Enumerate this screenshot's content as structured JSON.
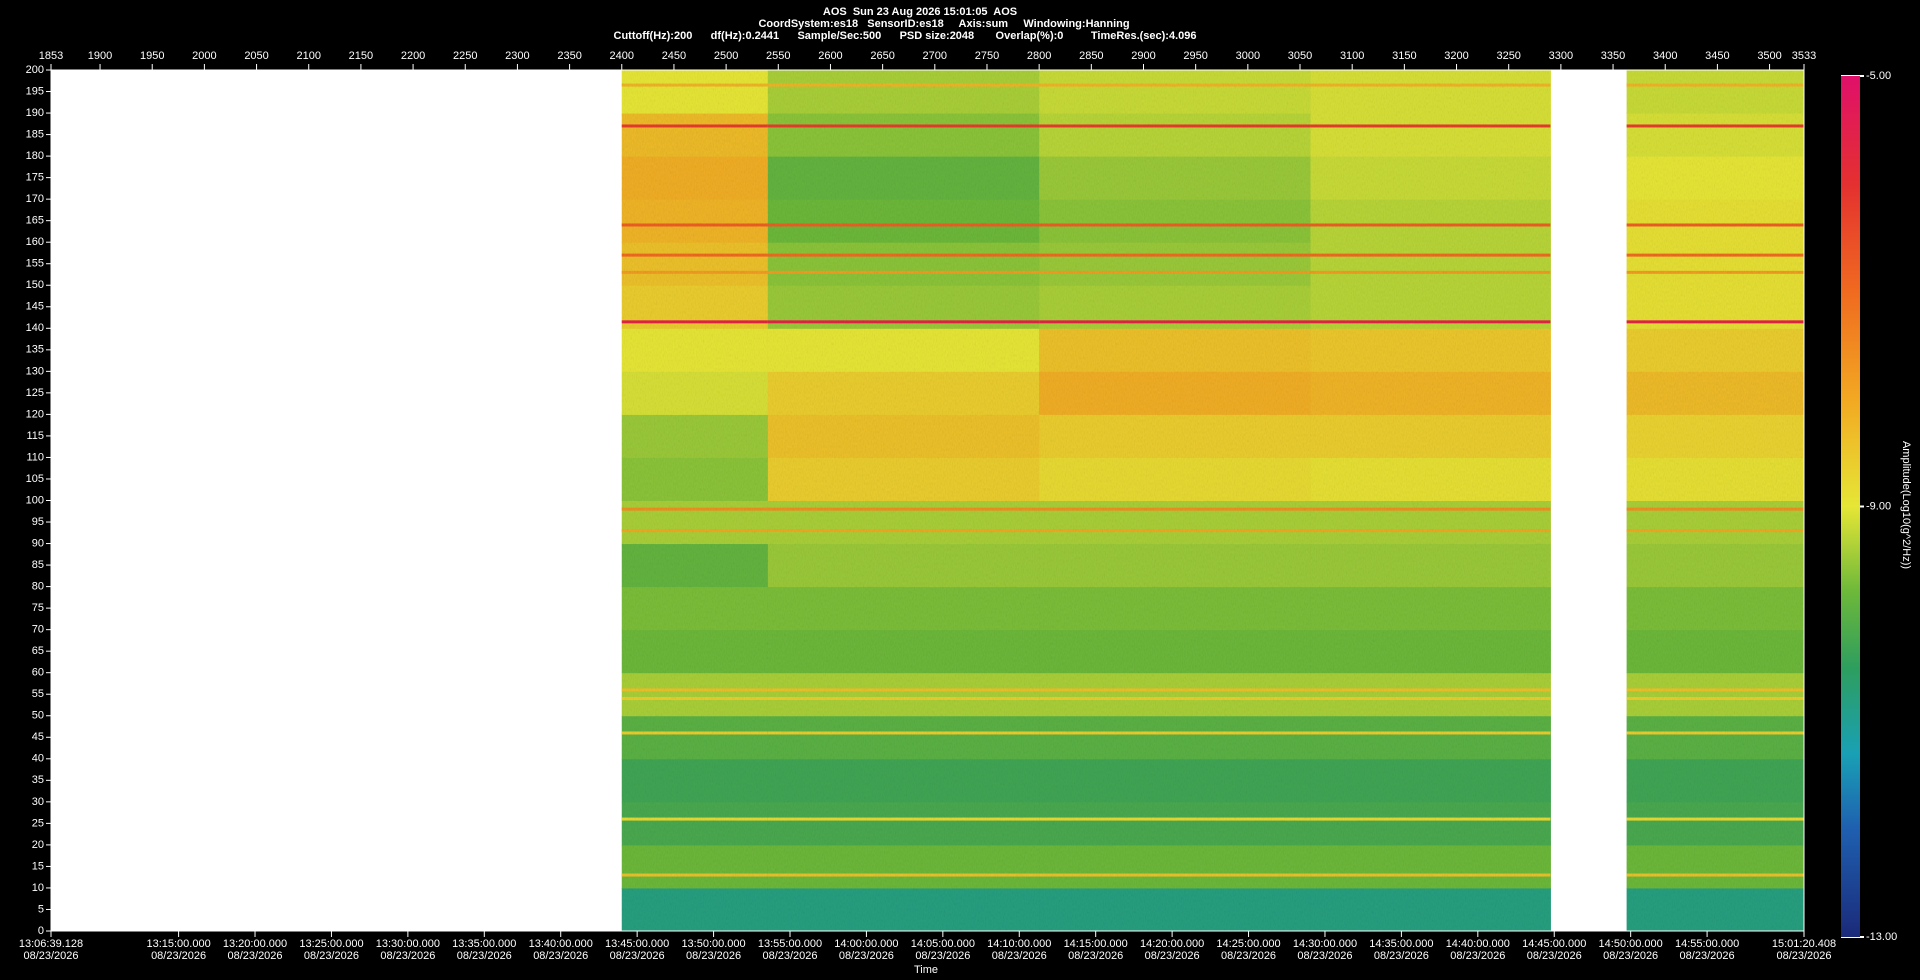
{
  "chart_data": {
    "type": "spectrogram",
    "title": "AOS  Sun 23 Aug 2026 15:01:05  AOS",
    "info_lines": [
      "CoordSystem:es18   SensorID:es18     Axis:sum     Windowing:Hanning",
      "Cuttoff(Hz):200      df(Hz):0.2441      Sample/Sec:500      PSD size:2048       Overlap(%):0         TimeRes.(sec):4.096"
    ],
    "xlabel": "Time",
    "colorbar_label": "Amplitude(Log10(g^2/Hz))",
    "xlim": [
      1853,
      3533
    ],
    "xticks": [
      1853,
      1900,
      1950,
      2000,
      2050,
      2100,
      2150,
      2200,
      2250,
      2300,
      2350,
      2400,
      2450,
      2500,
      2550,
      2600,
      2650,
      2700,
      2750,
      2800,
      2850,
      2900,
      2950,
      3000,
      3050,
      3100,
      3150,
      3200,
      3250,
      3300,
      3350,
      3400,
      3450,
      3500,
      3533
    ],
    "x2ticks": [
      {
        "value": 1853,
        "label": "13:06:39.128",
        "date": "08/23/2026"
      },
      {
        "value": 1975.283,
        "label": "13:15:00.000",
        "date": "08/23/2026"
      },
      {
        "value": 2048.525,
        "label": "13:20:00.000",
        "date": "08/23/2026"
      },
      {
        "value": 2121.767,
        "label": "13:25:00.000",
        "date": "08/23/2026"
      },
      {
        "value": 2195.01,
        "label": "13:30:00.000",
        "date": "08/23/2026"
      },
      {
        "value": 2268.252,
        "label": "13:35:00.000",
        "date": "08/23/2026"
      },
      {
        "value": 2341.494,
        "label": "13:40:00.000",
        "date": "08/23/2026"
      },
      {
        "value": 2414.736,
        "label": "13:45:00.000",
        "date": "08/23/2026"
      },
      {
        "value": 2487.978,
        "label": "13:50:00.000",
        "date": "08/23/2026"
      },
      {
        "value": 2561.22,
        "label": "13:55:00.000",
        "date": "08/23/2026"
      },
      {
        "value": 2634.463,
        "label": "14:00:00.000",
        "date": "08/23/2026"
      },
      {
        "value": 2707.705,
        "label": "14:05:00.000",
        "date": "08/23/2026"
      },
      {
        "value": 2780.947,
        "label": "14:10:00.000",
        "date": "08/23/2026"
      },
      {
        "value": 2854.189,
        "label": "14:15:00.000",
        "date": "08/23/2026"
      },
      {
        "value": 2927.431,
        "label": "14:20:00.000",
        "date": "08/23/2026"
      },
      {
        "value": 3000.674,
        "label": "14:25:00.000",
        "date": "08/23/2026"
      },
      {
        "value": 3073.916,
        "label": "14:30:00.000",
        "date": "08/23/2026"
      },
      {
        "value": 3147.158,
        "label": "14:35:00.000",
        "date": "08/23/2026"
      },
      {
        "value": 3220.4,
        "label": "14:40:00.000",
        "date": "08/23/2026"
      },
      {
        "value": 3293.642,
        "label": "14:45:00.000",
        "date": "08/23/2026"
      },
      {
        "value": 3366.885,
        "label": "14:50:00.000",
        "date": "08/23/2026"
      },
      {
        "value": 3440.127,
        "label": "14:55:00.000",
        "date": "08/23/2026"
      },
      {
        "value": 3533,
        "label": "15:01:20.408",
        "date": "08/23/2026"
      }
    ],
    "ylim": [
      0,
      200
    ],
    "yticks": [
      0,
      5,
      10,
      15,
      20,
      25,
      30,
      35,
      40,
      45,
      50,
      55,
      60,
      65,
      70,
      75,
      80,
      85,
      90,
      95,
      100,
      105,
      110,
      115,
      120,
      125,
      130,
      135,
      140,
      145,
      150,
      155,
      160,
      165,
      170,
      175,
      180,
      185,
      190,
      195,
      200
    ],
    "zlim": [
      -13,
      -5
    ],
    "zticks": [
      {
        "value": -5,
        "label": "-5.00"
      },
      {
        "value": -9,
        "label": "-9.00"
      },
      {
        "value": -13,
        "label": "-13.00"
      }
    ],
    "colormap": [
      [
        -13,
        "#1b2a7a"
      ],
      [
        -12,
        "#1f5fb0"
      ],
      [
        -11.3,
        "#19a0b5"
      ],
      [
        -10.5,
        "#2e9e5e"
      ],
      [
        -9.8,
        "#6cb83a"
      ],
      [
        -9,
        "#e6e636"
      ],
      [
        -8,
        "#f2a822"
      ],
      [
        -7,
        "#f06a20"
      ],
      [
        -6,
        "#e43030"
      ],
      [
        -5,
        "#e0106a"
      ]
    ],
    "heatmap": {
      "x_edges": [
        2400,
        2540,
        2800,
        3060,
        3290,
        3363,
        3533
      ],
      "y_edges": [
        0,
        10,
        20,
        30,
        40,
        50,
        60,
        70,
        80,
        90,
        100,
        110,
        120,
        130,
        140,
        150,
        160,
        170,
        180,
        190,
        200
      ],
      "values": [
        [
          -10.8,
          -10.8,
          -10.8,
          -10.8,
          null,
          -10.8
        ],
        [
          -9.8,
          -9.8,
          -9.8,
          -9.8,
          null,
          -9.8
        ],
        [
          -10.2,
          -10.2,
          -10.2,
          -10.2,
          null,
          -10.2
        ],
        [
          -10.3,
          -10.3,
          -10.3,
          -10.3,
          null,
          -10.3
        ],
        [
          -10.0,
          -10.0,
          -10.0,
          -10.0,
          null,
          -10.0
        ],
        [
          -9.4,
          -9.4,
          -9.4,
          -9.4,
          null,
          -9.4
        ],
        [
          -9.8,
          -9.8,
          -9.8,
          -9.8,
          null,
          -9.8
        ],
        [
          -9.7,
          -9.7,
          -9.7,
          -9.7,
          null,
          -9.7
        ],
        [
          -9.9,
          -9.5,
          -9.5,
          -9.5,
          null,
          -9.5
        ],
        [
          -9.4,
          -9.4,
          -9.4,
          -9.4,
          null,
          -9.4
        ],
        [
          -9.6,
          -8.6,
          -8.8,
          -8.9,
          null,
          -8.9
        ],
        [
          -9.5,
          -8.4,
          -8.6,
          -8.6,
          null,
          -8.7
        ],
        [
          -9.1,
          -8.6,
          -8.1,
          -8.2,
          null,
          -8.3
        ],
        [
          -9.0,
          -9.0,
          -8.4,
          -8.5,
          null,
          -8.6
        ],
        [
          -8.6,
          -9.5,
          -9.4,
          -9.3,
          null,
          -8.9
        ],
        [
          -8.4,
          -9.6,
          -9.5,
          -9.3,
          null,
          -8.9
        ],
        [
          -8.2,
          -9.8,
          -9.6,
          -9.3,
          null,
          -8.9
        ],
        [
          -8.1,
          -9.9,
          -9.5,
          -9.2,
          null,
          -9.0
        ],
        [
          -8.3,
          -9.6,
          -9.3,
          -9.1,
          null,
          -9.1
        ],
        [
          -9.0,
          -9.4,
          -9.2,
          -9.1,
          null,
          -9.2
        ]
      ]
    },
    "lines": {
      "hz": [
        196.5,
        187,
        164,
        157,
        153,
        141.5,
        98,
        93,
        56,
        54,
        46,
        26,
        13
      ],
      "values": [
        -8.2,
        -6.2,
        -6.8,
        -7.0,
        -7.8,
        -5.6,
        -7.6,
        -8.0,
        -8.4,
        -8.6,
        -8.6,
        -8.8,
        -8.4
      ]
    }
  }
}
